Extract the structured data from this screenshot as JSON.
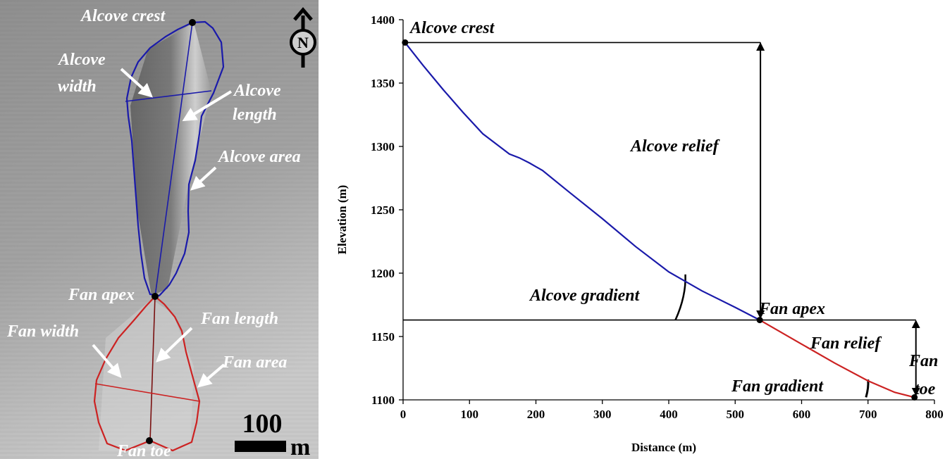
{
  "map": {
    "labels": {
      "alcove_crest": "Alcove crest",
      "alcove_width_1": "Alcove",
      "alcove_width_2": "width",
      "alcove_length_1": "Alcove",
      "alcove_length_2": "length",
      "alcove_area": "Alcove area",
      "fan_apex": "Fan apex",
      "fan_width": "Fan width",
      "fan_length": "Fan length",
      "fan_area": "Fan area",
      "fan_toe": "Fan toe"
    },
    "north_label": "N",
    "scale_bar": {
      "value": "100",
      "unit": "m"
    },
    "colors": {
      "alcove": "#1a1aaa",
      "fan": "#cc2222",
      "arrow": "#ffffff",
      "label": "#ffffff"
    }
  },
  "chart_data": {
    "type": "line",
    "xlabel": "Distance (m)",
    "ylabel": "Elevation (m)",
    "xlim": [
      0,
      800
    ],
    "ylim": [
      1100,
      1400
    ],
    "x_ticks": [
      0,
      100,
      200,
      300,
      400,
      500,
      600,
      700,
      800
    ],
    "y_ticks": [
      1100,
      1150,
      1200,
      1250,
      1300,
      1350,
      1400
    ],
    "series": [
      {
        "color": "#1a1aaa",
        "points": [
          [
            3,
            1382
          ],
          [
            30,
            1364
          ],
          [
            60,
            1345
          ],
          [
            90,
            1327
          ],
          [
            120,
            1310
          ],
          [
            145,
            1300
          ],
          [
            160,
            1294
          ],
          [
            175,
            1291
          ],
          [
            190,
            1287
          ],
          [
            210,
            1281
          ],
          [
            250,
            1264
          ],
          [
            300,
            1243
          ],
          [
            350,
            1221
          ],
          [
            400,
            1201
          ],
          [
            450,
            1186
          ],
          [
            500,
            1173
          ],
          [
            537,
            1163
          ]
        ]
      },
      {
        "color": "#cc2222",
        "points": [
          [
            537,
            1163
          ],
          [
            600,
            1144
          ],
          [
            650,
            1129
          ],
          [
            700,
            1115
          ],
          [
            740,
            1106
          ],
          [
            770,
            1102
          ]
        ]
      }
    ],
    "points": [
      {
        "x": 3,
        "y": 1382
      },
      {
        "x": 537,
        "y": 1163
      },
      {
        "x": 770,
        "y": 1102
      }
    ],
    "annotations": {
      "alcove_crest": "Alcove crest",
      "fan_apex": "Fan apex",
      "alcove_relief": "Alcove relief",
      "alcove_gradient": "Alcove gradient",
      "fan_relief": "Fan relief",
      "fan_gradient": "Fan gradient",
      "fan_toe_1": "Fan",
      "fan_toe_2": "toe"
    }
  }
}
